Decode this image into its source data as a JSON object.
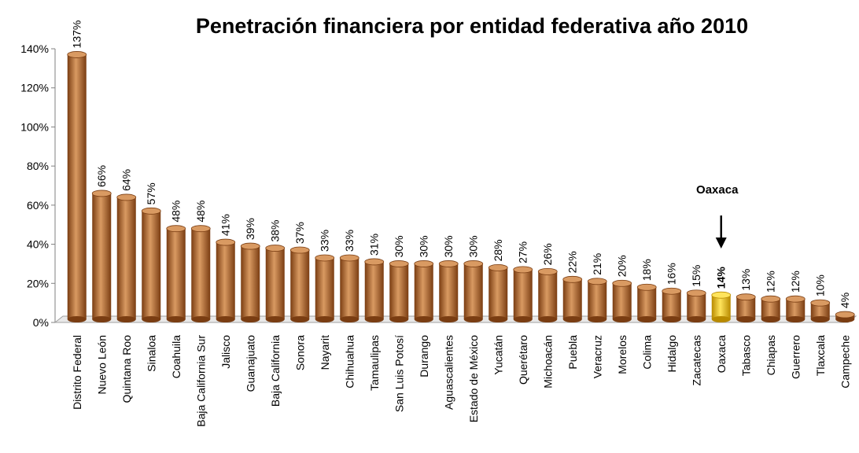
{
  "chart_data": {
    "type": "bar",
    "title": "Penetración financiera por entidad federativa año 2010",
    "xlabel": "",
    "ylabel": "",
    "ylim": [
      0,
      140
    ],
    "yticks": [
      "0%",
      "20%",
      "40%",
      "60%",
      "80%",
      "100%",
      "120%",
      "140%"
    ],
    "grid": false,
    "highlight": "Oaxaca",
    "annotation": "Oaxaca",
    "colors": {
      "bar": "#b86a2e",
      "bar_dark": "#7a3d12",
      "bar_light": "#d99a62",
      "highlight": "#f2c200",
      "highlight_dark": "#b88a00",
      "highlight_light": "#ffe45c"
    },
    "categories": [
      "Distrito Federal",
      "Nuevo León",
      "Quintana  Roo",
      "Sinaloa",
      "Coahuila",
      "Baja California  Sur",
      "Jalisco",
      "Guanajuato",
      "Baja California",
      "Sonora",
      "Nayarit",
      "Chihuahua",
      "Tamaulipas",
      "San Luis Potosí",
      "Durango",
      "Aguascalientes",
      "Estado de México",
      "Yucatán",
      "Querétaro",
      "Michoacán",
      "Puebla",
      "Veracruz",
      "Morelos",
      "Colima",
      "Hidalgo",
      "Zacatecas",
      "Oaxaca",
      "Tabasco",
      "Chiapas",
      "Guerrero",
      "Tlaxcala",
      "Campeche"
    ],
    "values": [
      137,
      66,
      64,
      57,
      48,
      48,
      41,
      39,
      38,
      37,
      33,
      33,
      31,
      30,
      30,
      30,
      30,
      28,
      27,
      26,
      22,
      21,
      20,
      18,
      16,
      15,
      14,
      13,
      12,
      12,
      10,
      4
    ],
    "labels": [
      "137%",
      "66%",
      "64%",
      "57%",
      "48%",
      "48%",
      "41%",
      "39%",
      "38%",
      "37%",
      "33%",
      "33%",
      "31%",
      "30%",
      "30%",
      "30%",
      "30%",
      "28%",
      "27%",
      "26%",
      "22%",
      "21%",
      "20%",
      "18%",
      "16%",
      "15%",
      "14%",
      "13%",
      "12%",
      "12%",
      "10%",
      "4%"
    ]
  }
}
